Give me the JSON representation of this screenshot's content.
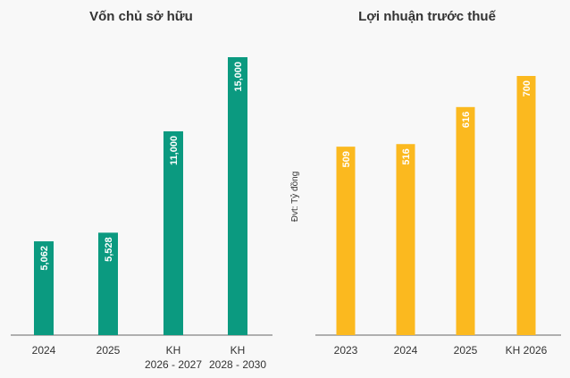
{
  "unit_label": "Đvt: Tỷ đồng",
  "chart_data": [
    {
      "type": "bar",
      "title": "Vốn chủ sở hữu",
      "color": "#0b9a80",
      "categories": [
        [
          "2024"
        ],
        [
          "2025"
        ],
        [
          "KH",
          "2026 - 2027"
        ],
        [
          "KH",
          "2028 - 2030"
        ]
      ],
      "values": [
        5062,
        5528,
        11000,
        15000
      ],
      "value_labels": [
        "5,062",
        "5,528",
        "11,000",
        "15,000"
      ],
      "ylim": [
        0,
        15000
      ]
    },
    {
      "type": "bar",
      "title": "Lợi nhuận trước thuế",
      "color": "#fbb91f",
      "categories": [
        [
          "2023"
        ],
        [
          "2024"
        ],
        [
          "2025"
        ],
        [
          "KH 2026"
        ]
      ],
      "values": [
        509,
        516,
        616,
        700
      ],
      "value_labels": [
        "509",
        "516",
        "616",
        "700"
      ],
      "ylim": [
        0,
        700
      ]
    }
  ]
}
